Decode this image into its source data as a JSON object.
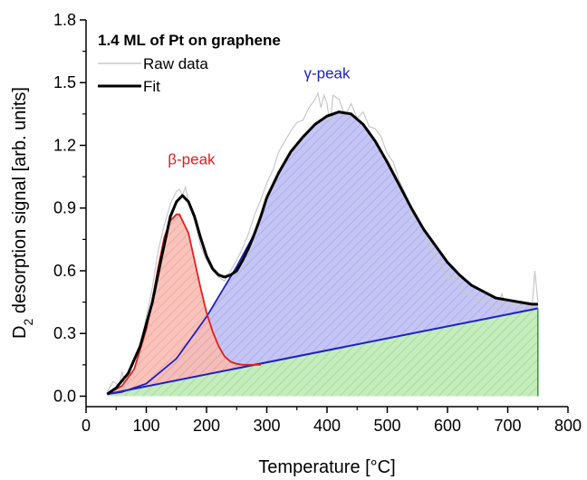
{
  "chart_data": {
    "type": "line",
    "title": "",
    "xlabel": "Temperature [°C]",
    "ylabel_main": "D",
    "ylabel_sub": "2",
    "ylabel_rest": " desorption signal [arb. units]",
    "xlim": [
      0,
      800
    ],
    "ylim": [
      -0.05,
      1.8
    ],
    "xticks": [
      0,
      100,
      200,
      300,
      400,
      500,
      600,
      700,
      800
    ],
    "yticks": [
      "0.0",
      "0.3",
      "0.6",
      "0.9",
      "1.2",
      "1.5",
      "1.8"
    ],
    "grid": false,
    "legend": {
      "title": "1.4 ML of Pt on graphene",
      "placement": "top-left",
      "entries": [
        "Raw data",
        "Fit"
      ]
    },
    "annotations": [
      {
        "text": "β-peak",
        "x": 175,
        "y": 1.11,
        "color": "#e02020"
      },
      {
        "text": "γ-peak",
        "x": 400,
        "y": 1.52,
        "color": "#2020c0"
      }
    ],
    "colors": {
      "raw": "#c8c8c8",
      "fit": "#000000",
      "beta": "#e02020",
      "beta_fill": "#f5b0a8",
      "gamma": "#2020c0",
      "gamma_fill": "#b8b8f0",
      "baseline": "#2020c0",
      "baseline_fill": "#b8e8b0"
    },
    "series": [
      {
        "name": "Raw data",
        "x": [
          35,
          45,
          55,
          60,
          65,
          70,
          80,
          90,
          100,
          110,
          120,
          130,
          140,
          150,
          155,
          160,
          165,
          170,
          180,
          190,
          200,
          210,
          220,
          230,
          240,
          250,
          260,
          270,
          280,
          290,
          300,
          310,
          320,
          330,
          340,
          350,
          360,
          370,
          380,
          385,
          390,
          395,
          400,
          405,
          410,
          420,
          430,
          440,
          450,
          460,
          470,
          480,
          490,
          500,
          510,
          520,
          530,
          540,
          550,
          560,
          570,
          580,
          590,
          600,
          610,
          620,
          630,
          640,
          650,
          660,
          670,
          680,
          690,
          700,
          710,
          720,
          730,
          740,
          745,
          750
        ],
        "y": [
          0.02,
          0.07,
          0.05,
          0.12,
          0.02,
          0.11,
          0.17,
          0.24,
          0.38,
          0.52,
          0.7,
          0.82,
          0.92,
          0.98,
          0.99,
          0.96,
          1.0,
          0.93,
          0.84,
          0.72,
          0.65,
          0.6,
          0.57,
          0.55,
          0.6,
          0.65,
          0.71,
          0.78,
          0.87,
          0.94,
          1.02,
          1.08,
          1.17,
          1.22,
          1.27,
          1.31,
          1.32,
          1.38,
          1.42,
          1.45,
          1.38,
          1.44,
          1.4,
          1.3,
          1.44,
          1.42,
          1.34,
          1.4,
          1.33,
          1.36,
          1.29,
          1.28,
          1.24,
          1.16,
          1.12,
          1.03,
          0.97,
          0.87,
          0.84,
          0.8,
          0.72,
          0.66,
          0.63,
          0.56,
          0.58,
          0.52,
          0.48,
          0.5,
          0.44,
          0.47,
          0.46,
          0.4,
          0.49,
          0.41,
          0.45,
          0.42,
          0.44,
          0.41,
          0.6,
          0.45
        ]
      },
      {
        "name": "Fit",
        "x": [
          35,
          50,
          70,
          90,
          110,
          125,
          140,
          150,
          160,
          170,
          180,
          190,
          200,
          210,
          220,
          230,
          240,
          250,
          260,
          270,
          280,
          290,
          300,
          320,
          340,
          360,
          380,
          400,
          420,
          440,
          460,
          480,
          500,
          520,
          540,
          560,
          580,
          600,
          620,
          640,
          660,
          680,
          700,
          720,
          740,
          750
        ],
        "y": [
          0.01,
          0.04,
          0.11,
          0.24,
          0.45,
          0.66,
          0.86,
          0.93,
          0.96,
          0.93,
          0.86,
          0.76,
          0.67,
          0.61,
          0.58,
          0.57,
          0.58,
          0.6,
          0.65,
          0.71,
          0.78,
          0.86,
          0.95,
          1.07,
          1.17,
          1.24,
          1.3,
          1.34,
          1.36,
          1.35,
          1.3,
          1.22,
          1.12,
          1.01,
          0.9,
          0.8,
          0.72,
          0.64,
          0.58,
          0.53,
          0.5,
          0.47,
          0.46,
          0.45,
          0.44,
          0.44
        ]
      },
      {
        "name": "β-peak",
        "x": [
          35,
          60,
          80,
          100,
          110,
          120,
          130,
          140,
          150,
          155,
          160,
          170,
          180,
          190,
          200,
          210,
          220,
          230,
          240,
          250,
          260,
          270,
          280,
          290
        ],
        "y": [
          0.01,
          0.05,
          0.13,
          0.32,
          0.46,
          0.62,
          0.76,
          0.84,
          0.87,
          0.87,
          0.84,
          0.78,
          0.65,
          0.52,
          0.4,
          0.31,
          0.24,
          0.19,
          0.165,
          0.155,
          0.15,
          0.15,
          0.15,
          0.15
        ]
      },
      {
        "name": "γ-peak",
        "x": [
          35,
          60,
          100,
          150,
          200,
          250,
          280,
          300,
          320,
          340,
          360,
          380,
          400,
          420,
          440,
          460,
          480,
          500,
          520,
          540,
          560,
          580,
          600,
          620,
          640,
          660,
          680,
          700,
          720,
          740,
          750
        ],
        "y": [
          0.01,
          0.02,
          0.06,
          0.18,
          0.38,
          0.62,
          0.78,
          0.95,
          1.07,
          1.17,
          1.24,
          1.3,
          1.34,
          1.36,
          1.35,
          1.3,
          1.22,
          1.12,
          1.01,
          0.9,
          0.8,
          0.72,
          0.64,
          0.58,
          0.53,
          0.5,
          0.47,
          0.46,
          0.45,
          0.44,
          0.44
        ]
      },
      {
        "name": "Baseline",
        "x": [
          35,
          750
        ],
        "y": [
          0.01,
          0.42
        ]
      }
    ]
  }
}
